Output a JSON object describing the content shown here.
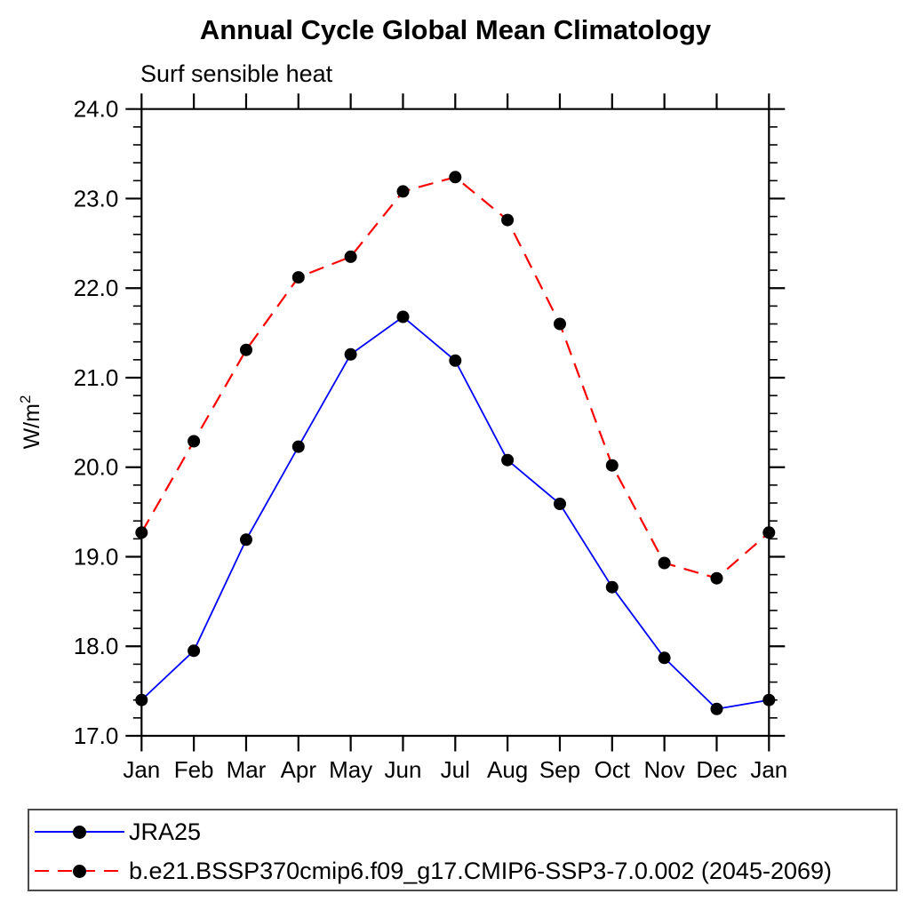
{
  "chart_data": {
    "type": "line",
    "title": "Annual Cycle Global Mean Climatology",
    "subtitle": "Surf sensible heat",
    "ylabel": {
      "base": "W/m",
      "sup": "2"
    },
    "categories": [
      "Jan",
      "Feb",
      "Mar",
      "Apr",
      "May",
      "Jun",
      "Jul",
      "Aug",
      "Sep",
      "Oct",
      "Nov",
      "Dec",
      "Jan"
    ],
    "ylim": [
      17.0,
      24.0
    ],
    "yticks": {
      "major_step": 1.0,
      "minor_step": 0.2,
      "label_decimals": 1
    },
    "grid": false,
    "legend_position": "bottom-left-box",
    "axis_color": "#000000",
    "marker_color": "#000000",
    "series": [
      {
        "name": "JRA25",
        "color": "#0000ff",
        "dash": false,
        "values": [
          17.4,
          17.95,
          19.19,
          20.23,
          21.26,
          21.68,
          21.19,
          20.08,
          19.59,
          18.66,
          17.87,
          17.3,
          17.4
        ]
      },
      {
        "name": "b.e21.BSSP370cmip6.f09_g17.CMIP6-SSP3-7.0.002 (2045-2069)",
        "color": "#ff0000",
        "dash": true,
        "values": [
          19.27,
          20.29,
          21.31,
          22.12,
          22.35,
          23.08,
          23.24,
          22.76,
          21.6,
          20.02,
          18.93,
          18.76,
          19.27
        ]
      }
    ]
  }
}
